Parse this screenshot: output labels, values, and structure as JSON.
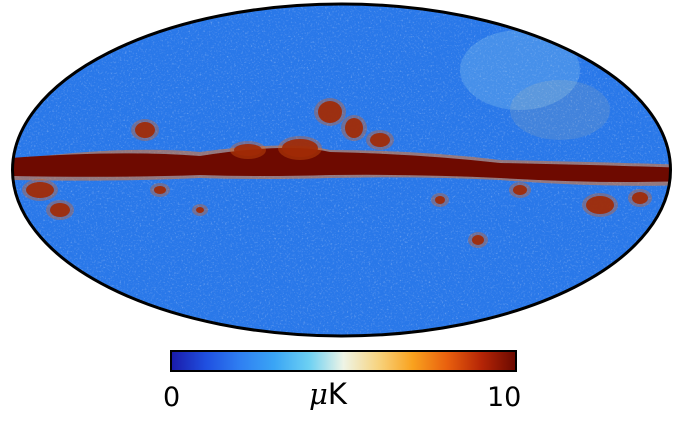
{
  "map": {
    "projection": "mollweide",
    "colormap_stops": [
      "#1a1aa8",
      "#1f4fe0",
      "#2f7ff2",
      "#3aa5f5",
      "#6cd0f3",
      "#eef4e6",
      "#f7d480",
      "#f9a21e",
      "#e9600e",
      "#b52506",
      "#6a0900"
    ]
  },
  "colorbar": {
    "min_label": "0",
    "max_label": "10",
    "unit_prefix": "μ",
    "unit_suffix": "K"
  }
}
